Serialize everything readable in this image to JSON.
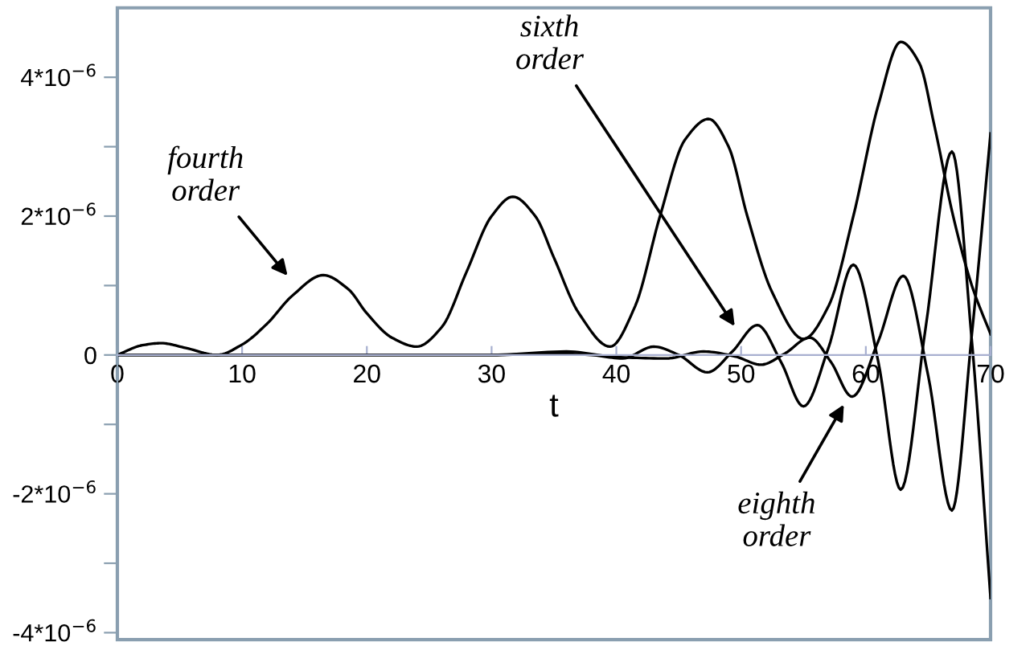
{
  "chart_data": {
    "type": "line",
    "xlabel": "t",
    "xlim": [
      0,
      70
    ],
    "xticks": [
      0,
      10,
      20,
      30,
      40,
      50,
      60,
      70
    ],
    "ylim": [
      -4.1e-06,
      5e-06
    ],
    "yticks": [
      {
        "value": -4e-06,
        "label": "-4*10$^{−6}$"
      },
      {
        "value": -3e-06,
        "label": null
      },
      {
        "value": -2e-06,
        "label": "-2*10$^{−6}$"
      },
      {
        "value": -1e-06,
        "label": null
      },
      0,
      {
        "value": 1e-06,
        "label": null
      },
      {
        "value": 2e-06,
        "label": "2*10$^{−6}$"
      },
      {
        "value": 3e-06,
        "label": null
      },
      {
        "value": 4e-06,
        "label": "4*10$^{−6}$"
      }
    ],
    "grid": false,
    "series": [
      {
        "color": "#000000",
        "x": [
          0,
          2,
          3.5,
          5.5,
          8,
          10,
          12,
          14,
          16.5,
          18.5,
          20,
          22,
          24,
          26,
          28,
          30,
          31.7,
          33.5,
          35,
          37,
          39.5,
          41.5,
          43.5,
          45.5,
          47.4,
          49,
          50.5,
          52.5,
          55,
          57,
          59,
          61,
          62.8,
          64.3,
          65.5,
          67,
          68.5,
          70
        ],
        "values": [
          0,
          1.4e-07,
          1.7e-07,
          1e-07,
          0,
          1.5e-07,
          4.5e-07,
          8.5e-07,
          1.15e-06,
          9.5e-07,
          6e-07,
          2.5e-07,
          1.2e-07,
          4e-07,
          1.2e-06,
          2e-06,
          2.28e-06,
          2e-06,
          1.4e-06,
          6e-07,
          1.2e-07,
          7e-07,
          2e-06,
          3.1e-06,
          3.4e-06,
          3e-06,
          2e-06,
          9e-07,
          2.3e-07,
          7e-07,
          2e-06,
          3.6e-06,
          4.51e-06,
          4.2e-06,
          3.3e-06,
          2e-06,
          1e-06,
          3e-07
        ]
      },
      {
        "color": "#000000",
        "x": [
          0,
          10,
          20,
          30,
          35,
          38,
          40.5,
          43,
          45,
          47.3,
          49.3,
          51.3,
          53.2,
          55,
          57,
          59,
          61,
          62.8,
          64.8,
          66.9,
          68.5,
          70
        ],
        "values": [
          0,
          0,
          0,
          0,
          2e-08,
          0,
          -5e-08,
          1.2e-07,
          0,
          -2.5e-07,
          5e-08,
          4.3e-07,
          -1e-07,
          -7.4e-07,
          1e-07,
          1.3e-06,
          -1e-07,
          -1.94e-06,
          4e-07,
          2.93e-06,
          2e-07,
          -3.5e-06
        ]
      },
      {
        "color": "#000000",
        "x": [
          0,
          10,
          20,
          30,
          36,
          40,
          44,
          47,
          49.5,
          51.6,
          53.5,
          55.5,
          57.2,
          58.9,
          61,
          63,
          65,
          66.9,
          68.5,
          70
        ],
        "values": [
          0,
          0,
          0,
          0,
          5e-08,
          -3e-08,
          -5e-08,
          5e-08,
          -2e-08,
          -1.4e-07,
          2e-08,
          2.5e-07,
          -1e-07,
          -6e-07,
          2e-07,
          1.14e-06,
          -3e-07,
          -2.24e-06,
          3e-07,
          3.19e-06
        ]
      }
    ],
    "annotations": [
      "fourth\norder",
      "sixth\norder",
      "eighth\norder"
    ]
  }
}
